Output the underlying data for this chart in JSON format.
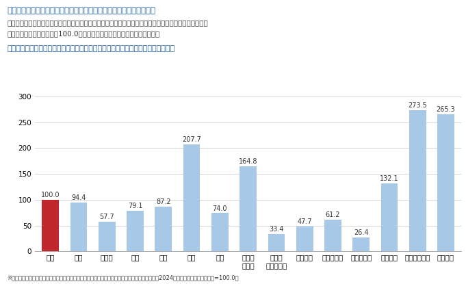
{
  "title_main": "３－４．マンション／高級住宅（ハイエンドクラス）の賃料水準比較",
  "subtitle1": "　図表３－４は、東京／港区元麻布所在／高級住宅（ハイエンドクラス）のマンション賃料（１戸の専有",
  "subtitle2": "面積あたりの賃料単価）を100.0とした場合の各都市との比較指数である。",
  "chart_title": "（図表３－４）［マンション／高級住宅（ハイエンドクラス）の賃料水準の比較］",
  "footnote": "※各都市の高級住宅（ハイエンドクラス）のマンションを前提とした賃料単価の各都市比較指数（2024年４月の東京・元麻布地区=100.0）",
  "categories": [
    "東京",
    "大阪",
    "ソウル",
    "北京",
    "上海",
    "香港",
    "台北",
    "シンガ\nポール",
    "クアラ\nルンプール",
    "バンコク",
    "ジャカルタ",
    "ホーチミン",
    "シドニー",
    "ニューヨーク",
    "ロンドン"
  ],
  "values": [
    100.0,
    94.4,
    57.7,
    79.1,
    87.2,
    207.7,
    74.0,
    164.8,
    33.4,
    47.7,
    61.2,
    26.4,
    132.1,
    273.5,
    265.3
  ],
  "bar_colors": [
    "#c0272d",
    "#a8c8e8",
    "#a8c8e8",
    "#a8c8e8",
    "#a8c8e8",
    "#a8c8e8",
    "#a8c8e8",
    "#a8c8e8",
    "#a8c8e8",
    "#a8c8e8",
    "#a8c8e8",
    "#a8c8e8",
    "#a8c8e8",
    "#a8c8e8",
    "#a8c8e8"
  ],
  "ylim": [
    0,
    300
  ],
  "yticks": [
    0,
    50,
    100,
    150,
    200,
    250,
    300
  ],
  "background_color": "#ffffff",
  "title_color": "#1a5fa8",
  "chart_title_color": "#1a5fa8",
  "text_color": "#333333",
  "grid_color": "#cccccc",
  "value_fontsize": 7.0,
  "tick_fontsize": 7.5,
  "footnote_fontsize": 6.0,
  "header_title_fontsize": 8.5,
  "header_body_fontsize": 7.5,
  "chart_label_fontsize": 8.0
}
